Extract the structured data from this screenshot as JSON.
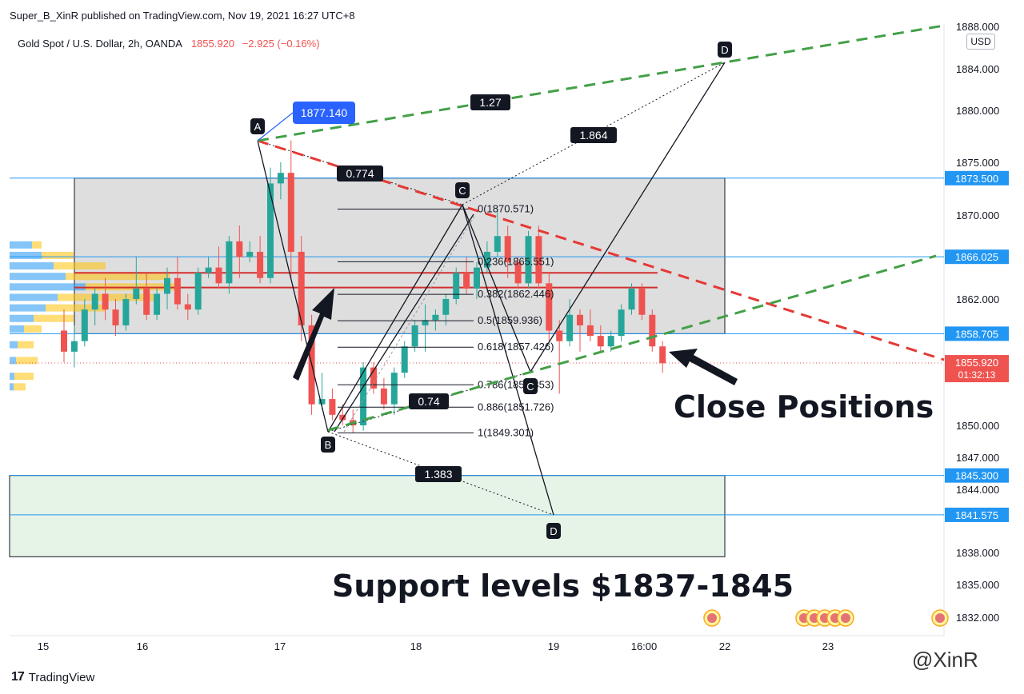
{
  "header": {
    "published": "Super_B_XinR published on TradingView.com, Nov 19, 2021 16:27 UTC+8",
    "symbol": "Gold Spot / U.S. Dollar, 2h, OANDA",
    "price": "1855.920",
    "change": "−2.925 (−0.16%)",
    "currency": "USD"
  },
  "footer": {
    "brand": "TradingView",
    "watermark": "@XinR"
  },
  "colors": {
    "up": "#26a69a",
    "down": "#ef5350",
    "green_dash": "#43a047",
    "red_dash": "#e53935",
    "level_line": "#2196f3"
  },
  "chart_data": {
    "type": "candlestick",
    "ylim": [
      1829.5,
      1888.0
    ],
    "x_ticks": [
      "15",
      "16",
      "17",
      "18",
      "19",
      "16:00",
      "22",
      "23"
    ],
    "y_ticks": [
      "1888.000",
      "1884.000",
      "1880.000",
      "1875.000",
      "1870.000",
      "1862.000",
      "1850.000",
      "1847.000",
      "1844.000",
      "1838.000",
      "1835.000",
      "1832.000"
    ],
    "price_labels": [
      {
        "text": "1873.500",
        "value": 1873.5
      },
      {
        "text": "1866.025",
        "value": 1866.025
      },
      {
        "text": "1858.705",
        "value": 1858.705
      },
      {
        "text": "1845.300",
        "value": 1845.3
      },
      {
        "text": "1841.575",
        "value": 1841.575
      }
    ],
    "current_price": {
      "text": "1855.920",
      "timer": "01:32:13",
      "value": 1855.92
    },
    "candles": [
      [
        1859.0,
        1861.0,
        1856.0,
        1857.0
      ],
      [
        1857.0,
        1859.5,
        1855.5,
        1858.0
      ],
      [
        1858.0,
        1862.0,
        1857.5,
        1861.0
      ],
      [
        1861.0,
        1863.0,
        1859.5,
        1862.5
      ],
      [
        1862.5,
        1864.0,
        1860.0,
        1861.0
      ],
      [
        1861.0,
        1862.0,
        1858.5,
        1859.5
      ],
      [
        1859.5,
        1862.5,
        1859.0,
        1862.0
      ],
      [
        1862.0,
        1866.0,
        1861.5,
        1863.0
      ],
      [
        1863.0,
        1864.5,
        1860.0,
        1860.5
      ],
      [
        1860.5,
        1863.0,
        1860.0,
        1862.5
      ],
      [
        1862.5,
        1865.0,
        1861.0,
        1864.0
      ],
      [
        1864.0,
        1866.0,
        1861.0,
        1861.5
      ],
      [
        1861.5,
        1862.5,
        1860.0,
        1861.0
      ],
      [
        1861.0,
        1865.0,
        1860.5,
        1864.5
      ],
      [
        1864.5,
        1866.0,
        1864.0,
        1865.0
      ],
      [
        1865.0,
        1867.0,
        1863.0,
        1863.5
      ],
      [
        1863.5,
        1868.0,
        1862.5,
        1867.5
      ],
      [
        1867.5,
        1869.0,
        1864.0,
        1866.0
      ],
      [
        1866.0,
        1867.5,
        1865.5,
        1866.5
      ],
      [
        1866.5,
        1868.0,
        1863.5,
        1864.0
      ],
      [
        1864.0,
        1874.5,
        1863.5,
        1873.0
      ],
      [
        1873.0,
        1875.0,
        1871.5,
        1874.0
      ],
      [
        1874.0,
        1877.1,
        1864.0,
        1866.5
      ],
      [
        1866.5,
        1868.0,
        1858.0,
        1859.5
      ],
      [
        1859.5,
        1860.5,
        1851.0,
        1852.0
      ],
      [
        1852.0,
        1855.0,
        1851.5,
        1852.5
      ],
      [
        1852.5,
        1853.5,
        1850.5,
        1851.0
      ],
      [
        1851.0,
        1852.0,
        1850.0,
        1850.5
      ],
      [
        1850.5,
        1851.5,
        1849.3,
        1850.0
      ],
      [
        1850.0,
        1856.0,
        1849.5,
        1855.5
      ],
      [
        1855.5,
        1856.0,
        1853.0,
        1853.5
      ],
      [
        1853.5,
        1854.5,
        1851.5,
        1852.0
      ],
      [
        1852.0,
        1855.5,
        1851.0,
        1855.0
      ],
      [
        1855.0,
        1858.0,
        1854.5,
        1857.5
      ],
      [
        1857.5,
        1860.0,
        1857.0,
        1859.5
      ],
      [
        1859.5,
        1861.5,
        1857.0,
        1860.0
      ],
      [
        1860.0,
        1861.0,
        1859.0,
        1860.5
      ],
      [
        1860.5,
        1862.5,
        1859.5,
        1862.0
      ],
      [
        1862.0,
        1865.0,
        1861.5,
        1864.5
      ],
      [
        1864.5,
        1866.0,
        1862.5,
        1863.0
      ],
      [
        1863.0,
        1865.5,
        1862.0,
        1865.0
      ],
      [
        1865.0,
        1867.5,
        1864.5,
        1866.5
      ],
      [
        1866.5,
        1870.6,
        1866.0,
        1868.0
      ],
      [
        1868.0,
        1869.0,
        1864.0,
        1865.5
      ],
      [
        1865.5,
        1866.0,
        1863.0,
        1863.5
      ],
      [
        1863.5,
        1868.5,
        1863.0,
        1868.0
      ],
      [
        1868.0,
        1869.0,
        1863.0,
        1863.5
      ],
      [
        1863.5,
        1864.5,
        1858.0,
        1859.0
      ],
      [
        1859.0,
        1860.0,
        1853.0,
        1858.0
      ],
      [
        1858.0,
        1862.0,
        1857.5,
        1860.5
      ],
      [
        1860.5,
        1861.0,
        1857.0,
        1859.5
      ],
      [
        1859.5,
        1861.0,
        1858.0,
        1858.5
      ],
      [
        1858.5,
        1859.5,
        1857.0,
        1857.5
      ],
      [
        1857.5,
        1859.0,
        1857.0,
        1858.5
      ],
      [
        1858.5,
        1861.5,
        1858.0,
        1861.0
      ],
      [
        1861.0,
        1863.5,
        1860.5,
        1863.0
      ],
      [
        1863.0,
        1863.5,
        1860.0,
        1860.5
      ],
      [
        1860.5,
        1861.0,
        1857.0,
        1857.5
      ],
      [
        1857.5,
        1858.0,
        1855.0,
        1855.9
      ]
    ],
    "fibonacci": [
      {
        "label": "0(1870.571)",
        "value": 1870.571
      },
      {
        "label": "0.236(1865.551)",
        "value": 1865.551
      },
      {
        "label": "0.382(1862.446)",
        "value": 1862.446
      },
      {
        "label": "0.5(1859.936)",
        "value": 1859.936
      },
      {
        "label": "0.618(1857.426)",
        "value": 1857.426
      },
      {
        "label": "0.786(1853.853)",
        "value": 1853.853
      },
      {
        "label": "0.886(1851.726)",
        "value": 1851.726
      },
      {
        "label": "1(1849.301)",
        "value": 1849.301
      }
    ],
    "pattern_points": [
      {
        "label": "A",
        "value": 1877.14
      },
      {
        "label": "B",
        "value": 1849.301
      },
      {
        "label": "C",
        "value": 1870.571
      },
      {
        "label": "D",
        "value": 1841.575
      },
      {
        "label": "C",
        "value": 1853.853
      },
      {
        "label": "D",
        "value": 1884.5
      }
    ],
    "ratio_labels": [
      "0.774",
      "1.383",
      "1.864",
      "1.27",
      "0.74"
    ],
    "price_callout": "1877.140",
    "annotations": {
      "close": "Close Positions",
      "support": "Support levels $1837-1845"
    }
  }
}
